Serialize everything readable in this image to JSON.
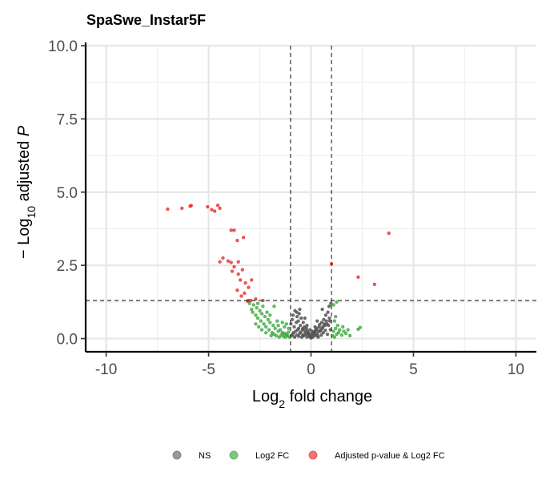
{
  "chart_data": {
    "type": "scatter",
    "title": "SpaSwe_Instar5F",
    "xlabel": {
      "base": "Log",
      "sub": "2",
      "rest": " fold change"
    },
    "ylabel": {
      "prefix": "− Log",
      "sub": "10",
      "mid": " adjusted ",
      "italic": "P"
    },
    "xlim": [
      -11,
      11
    ],
    "ylim": [
      -0.45,
      10
    ],
    "x_ticks": [
      -10,
      -5,
      0,
      5,
      10
    ],
    "x_tick_labels": [
      "-10",
      "-5",
      "0",
      "5",
      "10"
    ],
    "y_ticks": [
      0,
      2.5,
      5,
      7.5,
      10
    ],
    "y_tick_labels": [
      "0.0",
      "2.5",
      "5.0",
      "7.5",
      "10.0"
    ],
    "grid": true,
    "thresholds": {
      "log2fc": [
        -1,
        1
      ],
      "neg_log10_p": 1.3
    },
    "legend_position": "bottom",
    "series": [
      {
        "name": "NS",
        "color": "#555555",
        "points": [
          [
            -0.95,
            0.1
          ],
          [
            -0.9,
            0.15
          ],
          [
            -0.85,
            0.2
          ],
          [
            -0.8,
            0.05
          ],
          [
            -0.75,
            0.25
          ],
          [
            -0.7,
            0.12
          ],
          [
            -0.65,
            0.3
          ],
          [
            -0.6,
            0.08
          ],
          [
            -0.55,
            0.18
          ],
          [
            -0.5,
            0.22
          ],
          [
            -0.45,
            0.05
          ],
          [
            -0.4,
            0.35
          ],
          [
            -0.35,
            0.1
          ],
          [
            -0.3,
            0.28
          ],
          [
            -0.25,
            0.15
          ],
          [
            -0.2,
            0.05
          ],
          [
            -0.15,
            0.2
          ],
          [
            -0.1,
            0.12
          ],
          [
            -0.05,
            0.06
          ],
          [
            0.0,
            0.02
          ],
          [
            0.05,
            0.08
          ],
          [
            0.1,
            0.14
          ],
          [
            0.15,
            0.22
          ],
          [
            0.2,
            0.1
          ],
          [
            0.25,
            0.3
          ],
          [
            0.3,
            0.18
          ],
          [
            0.35,
            0.05
          ],
          [
            0.4,
            0.4
          ],
          [
            0.45,
            0.25
          ],
          [
            0.5,
            0.12
          ],
          [
            0.55,
            0.35
          ],
          [
            0.6,
            0.2
          ],
          [
            0.65,
            0.5
          ],
          [
            0.7,
            0.28
          ],
          [
            0.75,
            0.6
          ],
          [
            0.8,
            0.15
          ],
          [
            0.85,
            0.45
          ],
          [
            0.9,
            0.7
          ],
          [
            0.95,
            0.3
          ],
          [
            -0.98,
            0.5
          ],
          [
            -0.92,
            0.65
          ],
          [
            -0.88,
            0.8
          ],
          [
            -0.82,
            0.4
          ],
          [
            -0.78,
            0.95
          ],
          [
            -0.72,
            0.55
          ],
          [
            -0.68,
            0.75
          ],
          [
            -0.62,
            0.6
          ],
          [
            -0.58,
            0.85
          ],
          [
            -0.52,
            0.45
          ],
          [
            -0.48,
            0.7
          ],
          [
            -0.42,
            0.3
          ],
          [
            -0.38,
            0.55
          ],
          [
            -0.32,
            0.4
          ],
          [
            -0.28,
            0.2
          ],
          [
            -0.22,
            0.35
          ],
          [
            -0.18,
            0.25
          ],
          [
            -0.12,
            0.18
          ],
          [
            -0.08,
            0.1
          ],
          [
            0.08,
            0.05
          ],
          [
            0.12,
            0.22
          ],
          [
            0.18,
            0.16
          ],
          [
            0.22,
            0.28
          ],
          [
            0.28,
            0.35
          ],
          [
            0.32,
            0.1
          ],
          [
            0.38,
            0.25
          ],
          [
            0.42,
            0.48
          ],
          [
            0.48,
            0.3
          ],
          [
            0.52,
            0.55
          ],
          [
            0.58,
            0.4
          ],
          [
            0.62,
            0.65
          ],
          [
            0.68,
            0.45
          ],
          [
            0.72,
            0.8
          ],
          [
            0.78,
            0.5
          ],
          [
            0.82,
            0.9
          ],
          [
            0.88,
            1.1
          ],
          [
            0.92,
            0.6
          ],
          [
            0.97,
            1.2
          ],
          [
            0.55,
            1.0
          ],
          [
            0.3,
            0.6
          ],
          [
            -0.3,
            0.7
          ],
          [
            -0.55,
            1.0
          ],
          [
            -0.7,
            0.9
          ],
          [
            -0.6,
            0.35
          ],
          [
            -0.4,
            0.12
          ],
          [
            0.0,
            0.15
          ],
          [
            0.05,
            0.25
          ],
          [
            -0.05,
            0.3
          ],
          [
            0.2,
            0.4
          ],
          [
            -0.2,
            0.45
          ]
        ]
      },
      {
        "name": "Log2 FC",
        "color": "#2ca02c",
        "points": [
          [
            -3.0,
            1.2
          ],
          [
            -2.9,
            1.0
          ],
          [
            -2.85,
            0.9
          ],
          [
            -2.8,
            1.15
          ],
          [
            -2.7,
            0.8
          ],
          [
            -2.65,
            1.05
          ],
          [
            -2.6,
            0.7
          ],
          [
            -2.5,
            0.95
          ],
          [
            -2.45,
            0.6
          ],
          [
            -2.4,
            0.85
          ],
          [
            -2.3,
            0.5
          ],
          [
            -2.25,
            0.75
          ],
          [
            -2.2,
            0.4
          ],
          [
            -2.1,
            0.65
          ],
          [
            -2.05,
            0.3
          ],
          [
            -2.0,
            0.55
          ],
          [
            -1.9,
            0.2
          ],
          [
            -1.85,
            0.45
          ],
          [
            -1.8,
            0.15
          ],
          [
            -1.75,
            0.35
          ],
          [
            -1.7,
            0.1
          ],
          [
            -1.6,
            0.25
          ],
          [
            -1.55,
            0.05
          ],
          [
            -1.5,
            0.3
          ],
          [
            -1.45,
            0.12
          ],
          [
            -1.4,
            0.2
          ],
          [
            -1.35,
            0.08
          ],
          [
            -1.3,
            0.18
          ],
          [
            -1.25,
            0.05
          ],
          [
            -1.2,
            0.15
          ],
          [
            -1.15,
            0.1
          ],
          [
            -1.1,
            0.22
          ],
          [
            -1.05,
            0.05
          ],
          [
            -2.7,
            0.5
          ],
          [
            -2.4,
            0.3
          ],
          [
            -2.2,
            0.2
          ],
          [
            -1.95,
            0.1
          ],
          [
            -2.55,
            0.4
          ],
          [
            -2.35,
            1.1
          ],
          [
            -2.15,
            0.9
          ],
          [
            -1.65,
            0.6
          ],
          [
            -1.3,
            0.4
          ],
          [
            -1.2,
            0.5
          ],
          [
            -1.1,
            0.35
          ],
          [
            -1.6,
            0.45
          ],
          [
            -1.4,
            0.55
          ],
          [
            -2.0,
            0.8
          ],
          [
            -2.6,
            1.2
          ],
          [
            -1.8,
            1.1
          ],
          [
            1.05,
            0.1
          ],
          [
            1.1,
            0.25
          ],
          [
            1.15,
            0.05
          ],
          [
            1.2,
            0.35
          ],
          [
            1.25,
            0.15
          ],
          [
            1.3,
            0.45
          ],
          [
            1.35,
            0.2
          ],
          [
            1.4,
            0.3
          ],
          [
            1.5,
            0.12
          ],
          [
            1.55,
            0.4
          ],
          [
            1.6,
            0.25
          ],
          [
            1.7,
            0.18
          ],
          [
            1.8,
            0.3
          ],
          [
            1.9,
            0.1
          ],
          [
            1.2,
            0.75
          ],
          [
            1.1,
            1.15
          ],
          [
            1.25,
            1.25
          ],
          [
            2.4,
            0.38
          ],
          [
            2.3,
            0.32
          ],
          [
            1.15,
            0.6
          ]
        ]
      },
      {
        "name": "Adjusted p-value & Log2 FC",
        "color": "#e41a1c",
        "points": [
          [
            -7.0,
            4.42
          ],
          [
            -6.3,
            4.45
          ],
          [
            -5.9,
            4.52
          ],
          [
            -5.85,
            4.54
          ],
          [
            -5.05,
            4.5
          ],
          [
            -4.85,
            4.4
          ],
          [
            -4.7,
            4.35
          ],
          [
            -4.55,
            4.55
          ],
          [
            -4.45,
            4.45
          ],
          [
            -3.9,
            3.7
          ],
          [
            -3.75,
            3.7
          ],
          [
            -3.6,
            3.35
          ],
          [
            -3.3,
            3.45
          ],
          [
            -4.3,
            2.75
          ],
          [
            -4.45,
            2.62
          ],
          [
            -4.05,
            2.65
          ],
          [
            -3.9,
            2.6
          ],
          [
            -3.75,
            2.45
          ],
          [
            -3.55,
            2.62
          ],
          [
            -3.85,
            2.3
          ],
          [
            -3.55,
            2.2
          ],
          [
            -3.35,
            2.35
          ],
          [
            -3.45,
            2.0
          ],
          [
            -3.2,
            1.9
          ],
          [
            -2.9,
            2.0
          ],
          [
            -3.05,
            1.75
          ],
          [
            -3.6,
            1.65
          ],
          [
            -3.25,
            1.55
          ],
          [
            -3.4,
            1.45
          ],
          [
            -3.05,
            1.3
          ],
          [
            -2.95,
            1.3
          ],
          [
            -3.1,
            1.28
          ],
          [
            -2.7,
            1.35
          ],
          [
            -2.35,
            1.3
          ],
          [
            1.0,
            2.55
          ],
          [
            2.3,
            2.1
          ],
          [
            3.1,
            1.85
          ],
          [
            3.8,
            3.6
          ]
        ]
      }
    ]
  }
}
